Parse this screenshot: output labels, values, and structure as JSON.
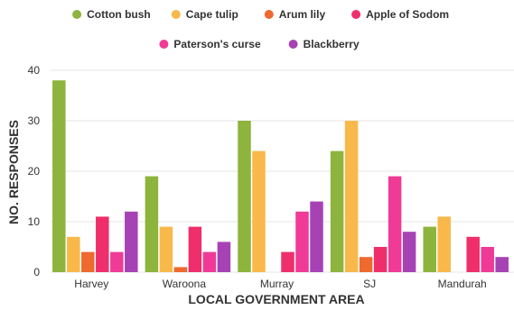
{
  "chart_data": {
    "type": "bar",
    "title": "",
    "xlabel": "LOCAL GOVERNMENT AREA",
    "ylabel": "NO. RESPONSES",
    "ylim": [
      0,
      40
    ],
    "yticks": [
      0,
      10,
      20,
      30,
      40
    ],
    "grid": true,
    "legend_position": "top",
    "categories": [
      "Harvey",
      "Waroona",
      "Murray",
      "SJ",
      "Mandurah"
    ],
    "series": [
      {
        "name": "Cotton bush",
        "color": "#8db43c",
        "values": [
          38,
          19,
          30,
          24,
          9
        ]
      },
      {
        "name": "Cape tulip",
        "color": "#f8b84a",
        "values": [
          7,
          9,
          24,
          30,
          11
        ]
      },
      {
        "name": "Arum lily",
        "color": "#ee6a2e",
        "values": [
          4,
          1,
          0,
          3,
          0
        ]
      },
      {
        "name": "Apple of Sodom",
        "color": "#ee2f6b",
        "values": [
          11,
          9,
          4,
          5,
          7
        ]
      },
      {
        "name": "Paterson's curse",
        "color": "#ef3b96",
        "values": [
          4,
          4,
          12,
          19,
          5
        ]
      },
      {
        "name": "Blackberry",
        "color": "#a642b4",
        "values": [
          12,
          6,
          14,
          8,
          3
        ]
      }
    ]
  }
}
